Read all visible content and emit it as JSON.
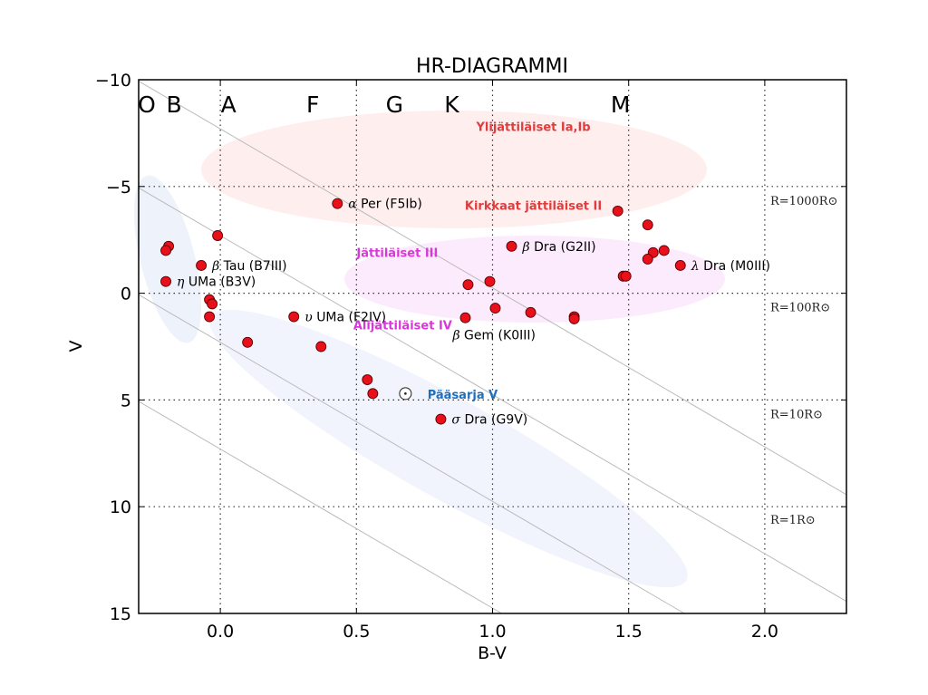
{
  "chart_data": {
    "type": "scatter",
    "title": "HR-DIAGRAMMI",
    "xlabel": "B-V",
    "ylabel": "V",
    "xlim": [
      -0.3,
      2.3
    ],
    "ylim": [
      15,
      -10
    ],
    "y_inverted": true,
    "grid": true,
    "xticks": [
      0.0,
      0.5,
      1.0,
      1.5,
      2.0
    ],
    "xtick_labels": [
      "0.0",
      "0.5",
      "1.0",
      "1.5",
      "2.0"
    ],
    "yticks": [
      -10,
      -5,
      0,
      5,
      10,
      15
    ],
    "ytick_labels": [
      "−10",
      "−5",
      "0",
      "5",
      "10",
      "15"
    ],
    "spectral_classes": [
      {
        "label": "O",
        "x": -0.27
      },
      {
        "label": "B",
        "x": -0.17
      },
      {
        "label": "A",
        "x": 0.03
      },
      {
        "label": "F",
        "x": 0.34
      },
      {
        "label": "G",
        "x": 0.64
      },
      {
        "label": "K",
        "x": 0.85
      },
      {
        "label": "M",
        "x": 1.47
      }
    ],
    "points": [
      {
        "x": 0.43,
        "y": -4.2,
        "label": "Per (F5Ib)",
        "greek": "α"
      },
      {
        "x": -0.01,
        "y": -2.7
      },
      {
        "x": -0.19,
        "y": -2.2
      },
      {
        "x": -0.2,
        "y": -2.0
      },
      {
        "x": -0.07,
        "y": -1.3,
        "label": "Tau (B7III)",
        "greek": "β"
      },
      {
        "x": -0.2,
        "y": -0.55,
        "label": "UMa (B3V)",
        "greek": "η"
      },
      {
        "x": -0.04,
        "y": 0.3
      },
      {
        "x": -0.03,
        "y": 0.5
      },
      {
        "x": -0.04,
        "y": 1.1
      },
      {
        "x": 0.1,
        "y": 2.3
      },
      {
        "x": 0.27,
        "y": 1.1,
        "label": "UMa (F2IV)",
        "greek": "υ"
      },
      {
        "x": 0.37,
        "y": 2.5
      },
      {
        "x": 0.54,
        "y": 4.05
      },
      {
        "x": 0.56,
        "y": 4.7
      },
      {
        "x": 0.81,
        "y": 5.9,
        "label": "Dra (G9V)",
        "greek": "σ"
      },
      {
        "x": 1.07,
        "y": -2.2,
        "label": "Dra (G2II)",
        "greek": "β"
      },
      {
        "x": 0.91,
        "y": -0.4
      },
      {
        "x": 0.99,
        "y": -0.55
      },
      {
        "x": 1.01,
        "y": 0.7
      },
      {
        "x": 1.14,
        "y": 0.9
      },
      {
        "x": 0.9,
        "y": 1.15,
        "label": "Gem (K0III)",
        "greek": "β"
      },
      {
        "x": 1.3,
        "y": 1.1
      },
      {
        "x": 1.3,
        "y": 1.2
      },
      {
        "x": 1.46,
        "y": -3.85
      },
      {
        "x": 1.57,
        "y": -3.2
      },
      {
        "x": 1.59,
        "y": -1.9
      },
      {
        "x": 1.57,
        "y": -1.6
      },
      {
        "x": 1.63,
        "y": -2.0
      },
      {
        "x": 1.69,
        "y": -1.3,
        "label": "Dra (M0III)",
        "greek": "λ"
      },
      {
        "x": 1.48,
        "y": -0.8
      },
      {
        "x": 1.49,
        "y": -0.8
      }
    ],
    "sun": {
      "x": 0.68,
      "y": 4.7,
      "symbol": "⊙"
    },
    "regions": [
      {
        "name": "Ylijättiläiset Ia,Ib",
        "color": "#e03c3c",
        "fill": "#fde8e8",
        "cx": 0.9,
        "cy": -5.9,
        "rx": 0.93,
        "ry": 2.7,
        "label_x": 1.15,
        "label_y": -7.6
      },
      {
        "name": "Kirkkaat jättiläiset II",
        "color": "#e03c3c",
        "label_x": 1.15,
        "label_y": -3.9
      },
      {
        "name": "Jättiläiset III",
        "color": "#d63ad6",
        "fill": "#fbe6fb",
        "cx": 1.2,
        "cy": -0.6,
        "rx": 0.7,
        "ry": 2.1,
        "label_x": 0.65,
        "label_y": -1.7
      },
      {
        "name": "Alijättiläiset IV",
        "color": "#d63ad6",
        "label_x": 0.67,
        "label_y": 1.7
      },
      {
        "name": "Pääsarja V",
        "color": "#1f6fbf",
        "fill": "#eef2fb",
        "label_x": 0.89,
        "label_y": 4.95
      }
    ],
    "radius_lines": [
      {
        "label": "R=1000R⊙",
        "value": 1000,
        "label_y": -4.15
      },
      {
        "label": "R=100R⊙",
        "value": 100,
        "label_y": 0.85
      },
      {
        "label": "R=10R⊙",
        "value": 10,
        "label_y": 5.85
      },
      {
        "label": "R=1R⊙",
        "value": 1,
        "label_y": 10.8
      }
    ],
    "colors": {
      "point_fill": "#e8101a",
      "point_edge": "#5a0000",
      "grid": "#333333",
      "radius_line": "#bbbbbb"
    }
  }
}
